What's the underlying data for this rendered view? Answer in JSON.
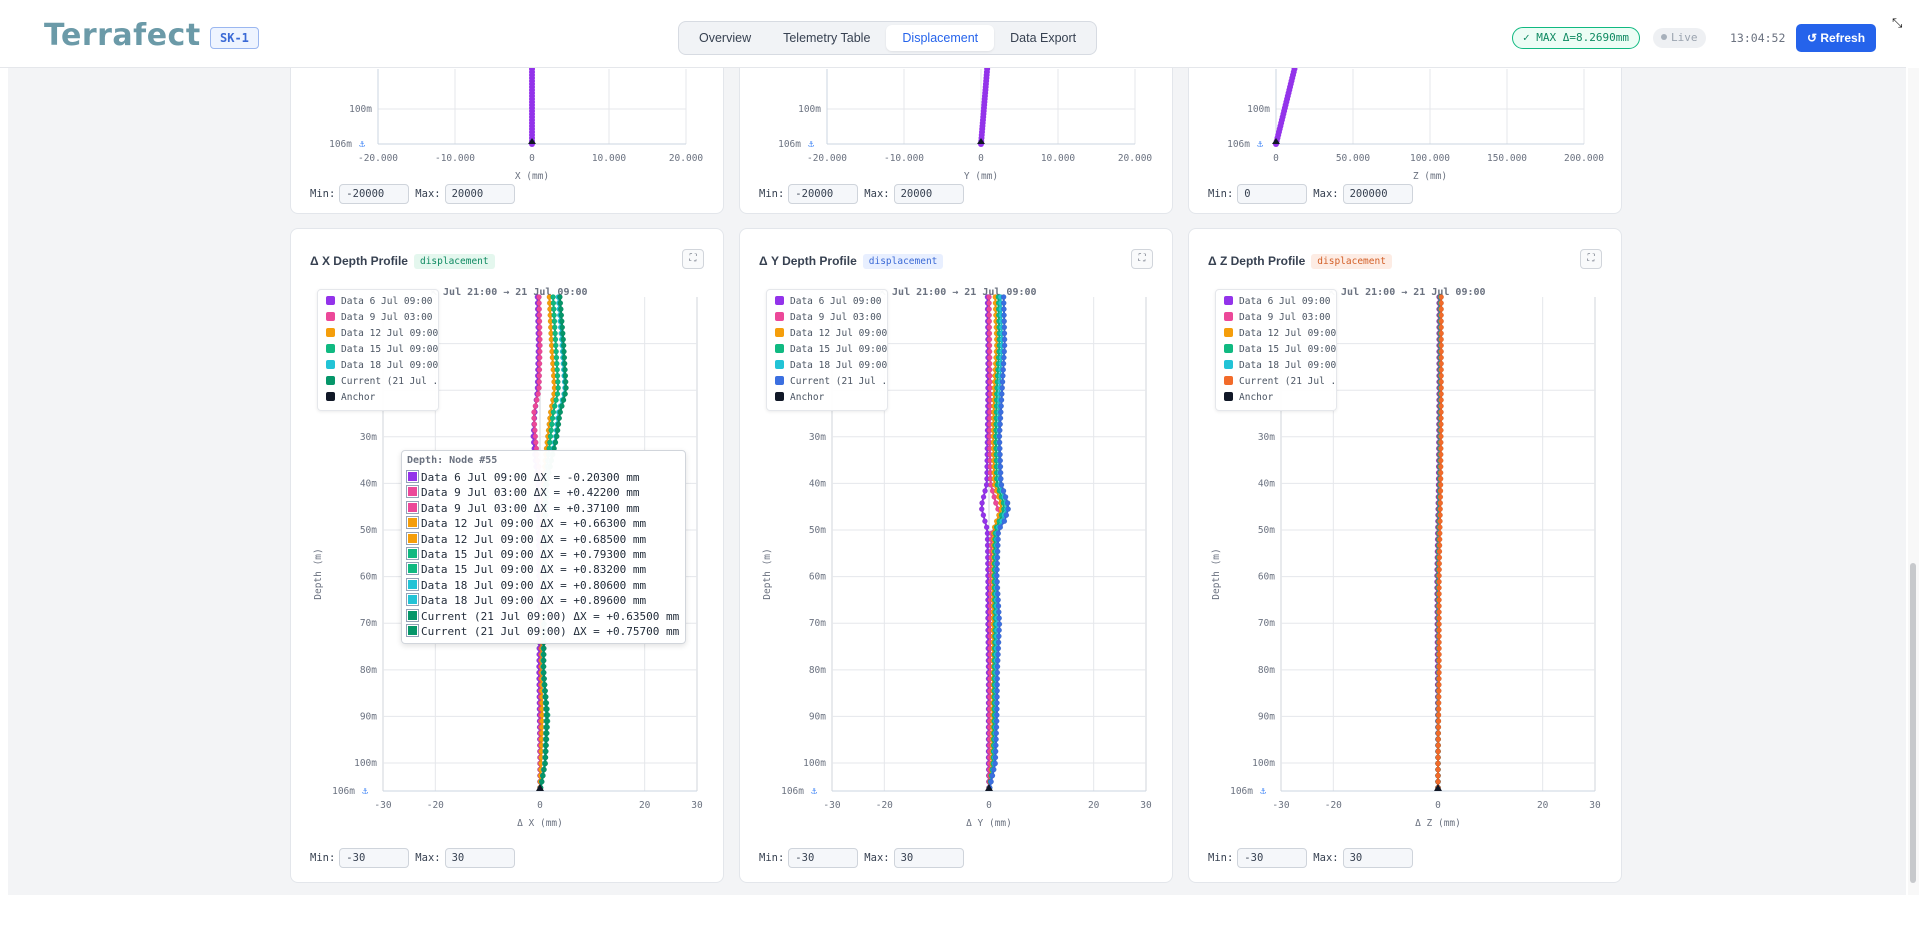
{
  "header": {
    "logo": "Terrafect",
    "site_badge": "SK-1",
    "tabs": [
      {
        "label": "Overview",
        "active": false
      },
      {
        "label": "Telemetry Table",
        "active": false
      },
      {
        "label": "Displacement",
        "active": true
      },
      {
        "label": "Data Export",
        "active": false
      }
    ],
    "max_badge": "✓ MAX Δ=8.2690mm",
    "live_label": "Live",
    "time": "13:04:52",
    "refresh_label": "↺ Refresh",
    "accent_color": "#2563eb"
  },
  "series_colors": {
    "Data 6 Jul 09:00": "#9333ea",
    "Data 9 Jul 03:00": "#ec4899",
    "Data 12 Jul 09:00": "#f59e0b",
    "Data 15 Jul 09:00": "#10b981",
    "Data 18 Jul 09:00": "#22c3d6",
    "Anchor": "#111827"
  },
  "top_panels": [
    {
      "axis_label": "X (mm)",
      "ticks": [
        "-20.000",
        "-10.000",
        "0",
        "10.000",
        "20.000"
      ],
      "depth_ticks": [
        "100m",
        "106m"
      ],
      "min_label": "Min:",
      "min": "-20000",
      "max_label": "Max:",
      "max": "20000"
    },
    {
      "axis_label": "Y (mm)",
      "ticks": [
        "-20.000",
        "-10.000",
        "0",
        "10.000",
        "20.000"
      ],
      "depth_ticks": [
        "100m",
        "106m"
      ],
      "min_label": "Min:",
      "min": "-20000",
      "max_label": "Max:",
      "max": "20000"
    },
    {
      "axis_label": "Z (mm)",
      "ticks": [
        "0",
        "50.000",
        "100.000",
        "150.000",
        "200.000"
      ],
      "depth_ticks": [
        "100m",
        "106m"
      ],
      "min_label": "Min:",
      "min": "0",
      "max_label": "Max:",
      "max": "200000"
    }
  ],
  "panels": [
    {
      "title": "Δ X Depth Profile",
      "tag": "displacement",
      "tag_style": "green",
      "range_from": "Jul 21:00",
      "range_sep": "→",
      "range_to": "21 Jul 09:00",
      "legend": [
        {
          "label": "Data 6 Jul 09:00",
          "color": "#9333ea"
        },
        {
          "label": "Data 9 Jul 03:00",
          "color": "#ec4899"
        },
        {
          "label": "Data 12 Jul 09:00",
          "color": "#f59e0b"
        },
        {
          "label": "Data 15 Jul 09:00",
          "color": "#10b981"
        },
        {
          "label": "Data 18 Jul 09:00",
          "color": "#22c3d6"
        },
        {
          "label": "Current (21 Jul ...",
          "color": "#059669"
        },
        {
          "label": "Anchor",
          "color": "#111827"
        }
      ],
      "ylabel": "Depth (m)",
      "xlabel": "Δ X (mm)",
      "min_label": "Min:",
      "min": "-30",
      "max_label": "Max:",
      "max": "30"
    },
    {
      "title": "Δ Y Depth Profile",
      "tag": "displacement",
      "tag_style": "blue",
      "range_from": "Jul 21:00",
      "range_sep": "→",
      "range_to": "21 Jul 09:00",
      "legend": [
        {
          "label": "Data 6 Jul 09:00",
          "color": "#9333ea"
        },
        {
          "label": "Data 9 Jul 03:00",
          "color": "#ec4899"
        },
        {
          "label": "Data 12 Jul 09:00",
          "color": "#f59e0b"
        },
        {
          "label": "Data 15 Jul 09:00",
          "color": "#10b981"
        },
        {
          "label": "Data 18 Jul 09:00",
          "color": "#22c3d6"
        },
        {
          "label": "Current (21 Jul ...",
          "color": "#3b6fe0"
        },
        {
          "label": "Anchor",
          "color": "#111827"
        }
      ],
      "ylabel": "Depth (m)",
      "xlabel": "Δ Y (mm)",
      "min_label": "Min:",
      "min": "-30",
      "max_label": "Max:",
      "max": "30"
    },
    {
      "title": "Δ Z Depth Profile",
      "tag": "displacement",
      "tag_style": "orange",
      "range_from": "Jul 21:00",
      "range_sep": "→",
      "range_to": "21 Jul 09:00",
      "legend": [
        {
          "label": "Data 6 Jul 09:00",
          "color": "#9333ea"
        },
        {
          "label": "Data 9 Jul 03:00",
          "color": "#ec4899"
        },
        {
          "label": "Data 12 Jul 09:00",
          "color": "#f59e0b"
        },
        {
          "label": "Data 15 Jul 09:00",
          "color": "#10b981"
        },
        {
          "label": "Data 18 Jul 09:00",
          "color": "#22c3d6"
        },
        {
          "label": "Current (21 Jul ...",
          "color": "#f26b2a"
        },
        {
          "label": "Anchor",
          "color": "#111827"
        }
      ],
      "ylabel": "Depth (m)",
      "xlabel": "Δ Z (mm)",
      "min_label": "Min:",
      "min": "-30",
      "max_label": "Max:",
      "max": "30"
    }
  ],
  "chart_data": [
    {
      "type": "line",
      "xlabel": "Δ X (mm)",
      "ylabel": "Depth (m)",
      "xlim": [
        -30,
        30
      ],
      "ylim": [
        106,
        0
      ],
      "x_ticks": [
        "-30",
        "-20",
        "0",
        "20",
        "30"
      ],
      "y_ticks": [
        "30m",
        "40m",
        "50m",
        "60m",
        "70m",
        "80m",
        "90m",
        "100m",
        "106m"
      ],
      "legend_position": "top-left",
      "series": [
        {
          "name": "Data 6 Jul 09:00",
          "depth": [
            0,
            10,
            20,
            25,
            30,
            35,
            40,
            50,
            60,
            70,
            80,
            90,
            100,
            106
          ],
          "values": [
            -0.5,
            -0.3,
            -0.5,
            -1.0,
            -1.3,
            -0.9,
            -0.4,
            -0.3,
            -0.2,
            -0.1,
            -0.2,
            -0.1,
            0,
            0
          ]
        },
        {
          "name": "Data 9 Jul 03:00",
          "depth": [
            0,
            10,
            20,
            25,
            30,
            35,
            40,
            50,
            60,
            70,
            80,
            90,
            100,
            106
          ],
          "values": [
            -0.2,
            0,
            -0.2,
            -1.2,
            -0.9,
            -0.5,
            0.4,
            0.3,
            0.2,
            0.2,
            0.1,
            0.1,
            0,
            0
          ]
        },
        {
          "name": "Data 12 Jul 09:00",
          "depth": [
            0,
            10,
            20,
            25,
            30,
            35,
            40,
            50,
            60,
            70,
            80,
            90,
            100,
            106
          ],
          "values": [
            1.8,
            2.2,
            2.8,
            2.0,
            1.5,
            1.0,
            0.7,
            0.6,
            0.5,
            0.4,
            0.3,
            0.4,
            0.2,
            0
          ]
        },
        {
          "name": "Data 15 Jul 09:00",
          "depth": [
            0,
            10,
            20,
            25,
            30,
            35,
            40,
            50,
            60,
            70,
            80,
            90,
            100,
            106
          ],
          "values": [
            2.5,
            3.0,
            3.5,
            2.5,
            2.0,
            1.5,
            1.0,
            0.8,
            0.7,
            0.7,
            0.6,
            1.5,
            1.0,
            0
          ]
        },
        {
          "name": "Data 18 Jul 09:00",
          "depth": [
            0,
            10,
            20,
            25,
            30,
            35,
            40,
            50,
            60,
            70,
            80,
            90,
            100,
            106
          ],
          "values": [
            3.5,
            4.2,
            4.8,
            3.5,
            3.0,
            2.0,
            1.2,
            0.9,
            0.8,
            0.7,
            0.6,
            1.2,
            0.9,
            0
          ]
        },
        {
          "name": "Current (21 Jul 09:00)",
          "depth": [
            0,
            10,
            20,
            25,
            30,
            35,
            40,
            50,
            60,
            70,
            80,
            90,
            100,
            106
          ],
          "values": [
            3.8,
            4.5,
            5.0,
            3.8,
            3.2,
            2.2,
            1.3,
            1.0,
            0.9,
            0.8,
            0.7,
            1.3,
            1.0,
            0
          ]
        }
      ]
    },
    {
      "type": "line",
      "xlabel": "Δ Y (mm)",
      "ylabel": "Depth (m)",
      "xlim": [
        -30,
        30
      ],
      "ylim": [
        106,
        0
      ],
      "x_ticks": [
        "-30",
        "-20",
        "0",
        "20",
        "30"
      ],
      "y_ticks": [
        "30m",
        "40m",
        "50m",
        "60m",
        "70m",
        "80m",
        "90m",
        "100m",
        "106m"
      ],
      "legend_position": "top-left",
      "series": [
        {
          "name": "Data 6 Jul 09:00",
          "depth": [
            0,
            10,
            20,
            30,
            40,
            45,
            48,
            50,
            60,
            70,
            80,
            90,
            100,
            106
          ],
          "values": [
            -0.3,
            -0.2,
            -0.2,
            -0.3,
            -0.4,
            -1.5,
            -0.8,
            -0.3,
            -0.2,
            -0.2,
            -0.1,
            -0.1,
            -0.1,
            0
          ]
        },
        {
          "name": "Data 9 Jul 03:00",
          "depth": [
            0,
            10,
            20,
            30,
            40,
            45,
            48,
            50,
            60,
            70,
            80,
            90,
            100,
            106
          ],
          "values": [
            0,
            0.1,
            0.2,
            0.1,
            0.3,
            1.5,
            2.8,
            0.5,
            0.3,
            0.2,
            0.2,
            0.1,
            0.1,
            0
          ]
        },
        {
          "name": "Data 12 Jul 09:00",
          "depth": [
            0,
            10,
            20,
            30,
            40,
            45,
            48,
            50,
            60,
            70,
            80,
            90,
            100,
            106
          ],
          "values": [
            1.2,
            1.5,
            1.0,
            0.8,
            1.0,
            2.5,
            1.5,
            0.9,
            0.8,
            0.8,
            0.8,
            0.7,
            0.6,
            0
          ]
        },
        {
          "name": "Data 15 Jul 09:00",
          "depth": [
            0,
            10,
            20,
            30,
            40,
            45,
            48,
            50,
            60,
            70,
            80,
            90,
            100,
            106
          ],
          "values": [
            1.8,
            2.0,
            1.5,
            1.3,
            1.5,
            3.0,
            2.0,
            1.2,
            1.0,
            1.2,
            1.0,
            1.0,
            0.8,
            0
          ]
        },
        {
          "name": "Data 18 Jul 09:00",
          "depth": [
            0,
            10,
            20,
            30,
            40,
            45,
            48,
            50,
            60,
            70,
            80,
            90,
            100,
            106
          ],
          "values": [
            2.2,
            2.5,
            2.0,
            1.8,
            2.0,
            3.5,
            2.5,
            1.5,
            1.3,
            1.5,
            1.3,
            1.3,
            1.0,
            0
          ]
        },
        {
          "name": "Current (21 Jul 09:00)",
          "depth": [
            0,
            10,
            20,
            30,
            40,
            45,
            48,
            50,
            60,
            70,
            80,
            90,
            100,
            106
          ],
          "values": [
            2.8,
            3.0,
            2.5,
            2.0,
            2.3,
            3.8,
            3.0,
            1.8,
            1.5,
            2.0,
            1.6,
            1.5,
            1.2,
            0
          ]
        }
      ]
    },
    {
      "type": "line",
      "xlabel": "Δ Z (mm)",
      "ylabel": "Depth (m)",
      "xlim": [
        -30,
        30
      ],
      "ylim": [
        106,
        0
      ],
      "x_ticks": [
        "-30",
        "-20",
        "0",
        "20",
        "30"
      ],
      "y_ticks": [
        "30m",
        "40m",
        "50m",
        "60m",
        "70m",
        "80m",
        "90m",
        "100m",
        "106m"
      ],
      "legend_position": "top-left",
      "series": [
        {
          "name": "Data 6 Jul 09:00",
          "depth": [
            0,
            20,
            40,
            60,
            80,
            100,
            106
          ],
          "values": [
            0.2,
            0.2,
            0.1,
            -0.2,
            -0.1,
            0,
            0
          ]
        },
        {
          "name": "Data 9 Jul 03:00",
          "depth": [
            0,
            20,
            40,
            60,
            80,
            100,
            106
          ],
          "values": [
            0.3,
            0.3,
            0.2,
            -0.1,
            0,
            0,
            0
          ]
        },
        {
          "name": "Data 12 Jul 09:00",
          "depth": [
            0,
            20,
            40,
            60,
            80,
            100,
            106
          ],
          "values": [
            0.4,
            0.4,
            0.3,
            0,
            0.1,
            0,
            0
          ]
        },
        {
          "name": "Data 15 Jul 09:00",
          "depth": [
            0,
            20,
            40,
            60,
            80,
            100,
            106
          ],
          "values": [
            0.4,
            0.4,
            0.3,
            0,
            0.1,
            0,
            0
          ]
        },
        {
          "name": "Data 18 Jul 09:00",
          "depth": [
            0,
            20,
            40,
            60,
            80,
            100,
            106
          ],
          "values": [
            0.5,
            0.5,
            0.4,
            0.1,
            0.1,
            0,
            0
          ]
        },
        {
          "name": "Current (21 Jul 09:00)",
          "depth": [
            0,
            20,
            40,
            60,
            80,
            100,
            106
          ],
          "values": [
            0.6,
            0.6,
            0.5,
            0.2,
            0.2,
            0,
            0
          ]
        }
      ]
    }
  ],
  "tooltip": {
    "title": "Depth: Node #55",
    "rows": [
      {
        "text": "Data 6 Jul 09:00 ΔX = -0.20300 mm",
        "color": "#9333ea"
      },
      {
        "text": "Data 9 Jul 03:00 ΔX = +0.42200 mm",
        "color": "#ec4899"
      },
      {
        "text": "Data 9 Jul 03:00 ΔX = +0.37100 mm",
        "color": "#ec4899"
      },
      {
        "text": "Data 12 Jul 09:00 ΔX = +0.66300 mm",
        "color": "#f59e0b"
      },
      {
        "text": "Data 12 Jul 09:00 ΔX = +0.68500 mm",
        "color": "#f59e0b"
      },
      {
        "text": "Data 15 Jul 09:00 ΔX = +0.79300 mm",
        "color": "#10b981"
      },
      {
        "text": "Data 15 Jul 09:00 ΔX = +0.83200 mm",
        "color": "#10b981"
      },
      {
        "text": "Data 18 Jul 09:00 ΔX = +0.80600 mm",
        "color": "#22c3d6"
      },
      {
        "text": "Data 18 Jul 09:00 ΔX = +0.89600 mm",
        "color": "#22c3d6"
      },
      {
        "text": "Current (21 Jul 09:00) ΔX = +0.63500 mm",
        "color": "#059669"
      },
      {
        "text": "Current (21 Jul 09:00) ΔX = +0.75700 mm",
        "color": "#059669"
      }
    ]
  }
}
